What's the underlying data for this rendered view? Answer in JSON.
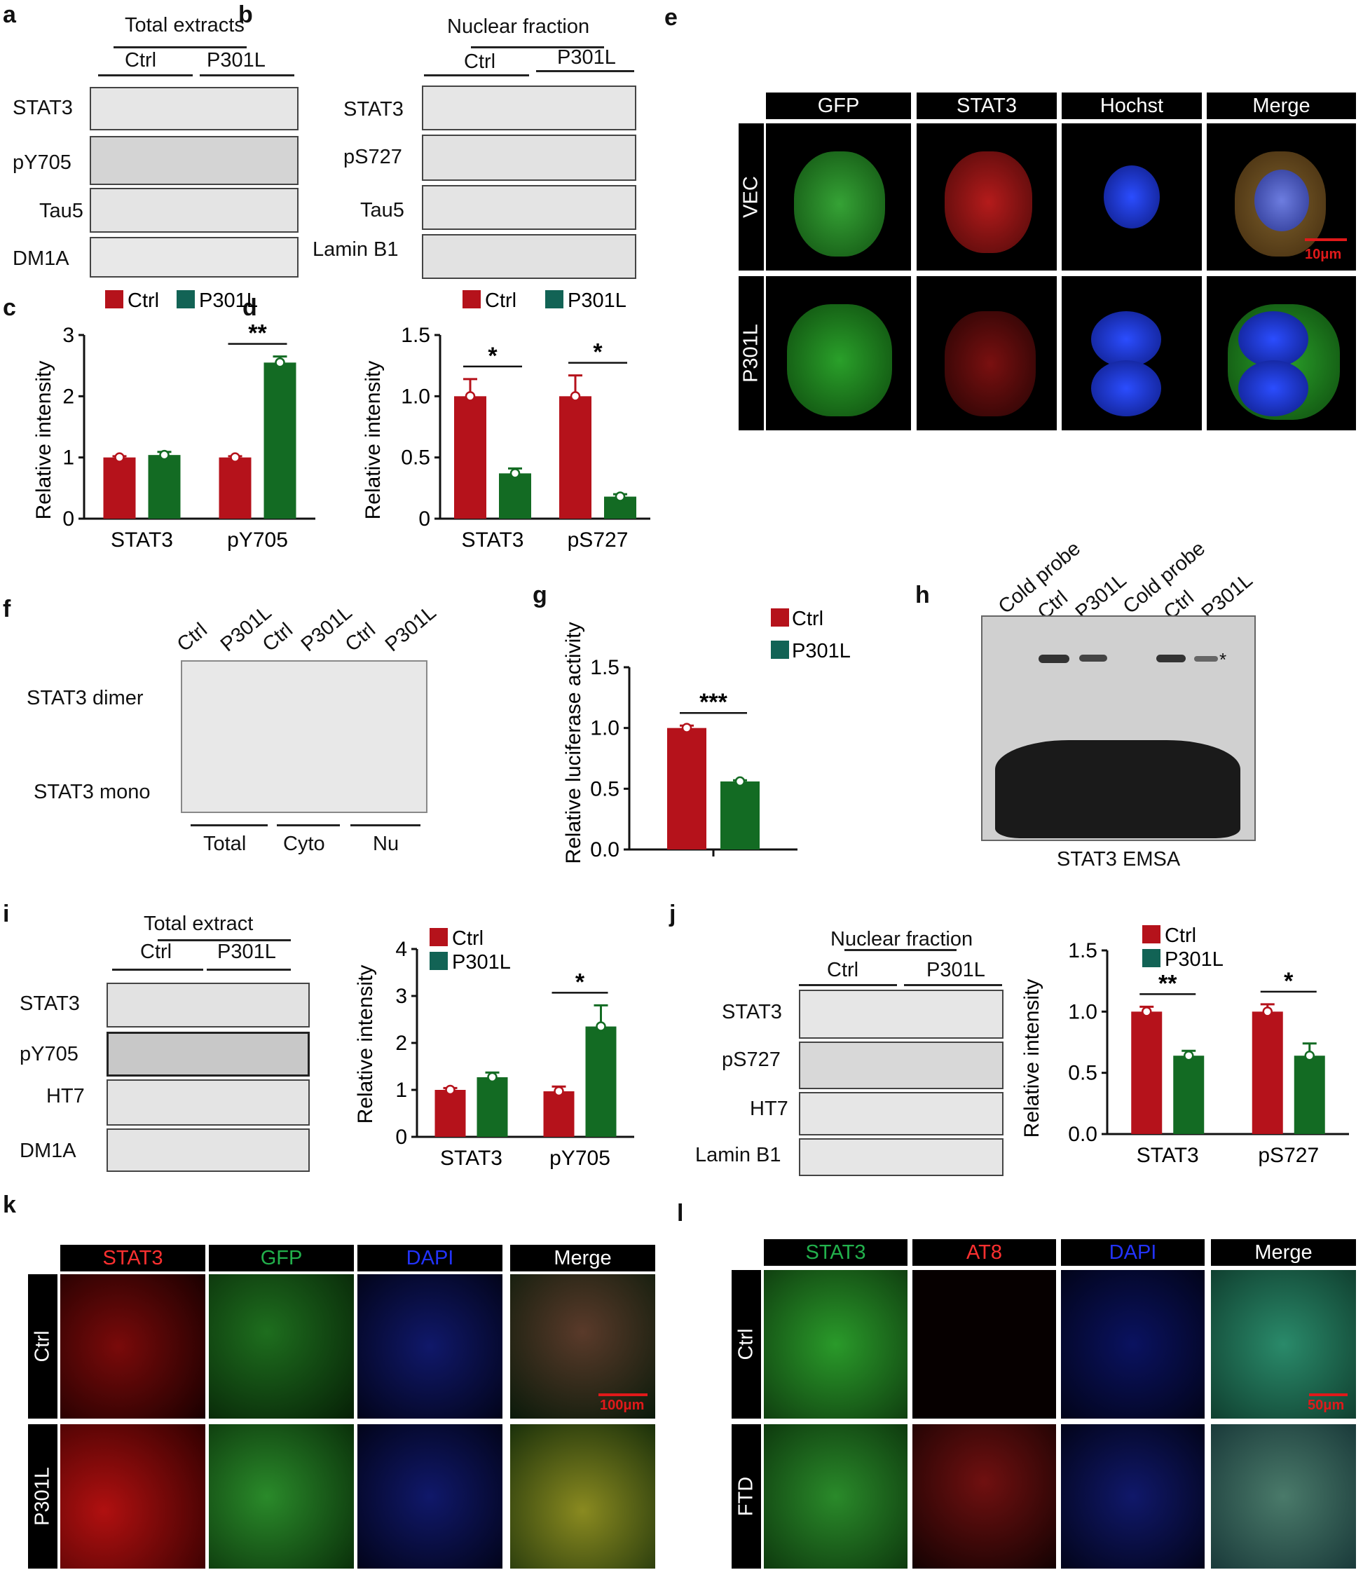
{
  "labels": {
    "a": "a",
    "b": "b",
    "c": "c",
    "d": "d",
    "e": "e",
    "f": "f",
    "g": "g",
    "h": "h",
    "i": "i",
    "j": "j",
    "k": "k",
    "l": "l"
  },
  "common": {
    "ctrl": "Ctrl",
    "p301l": "P301L",
    "rel_int": "Relative intensity",
    "star1": "*",
    "star2": "**",
    "star3": "***"
  },
  "panel_a": {
    "title": "Total extracts",
    "rows": [
      "STAT3",
      "pY705",
      "Tau5",
      "DM1A"
    ]
  },
  "panel_b": {
    "title": "Nuclear fraction",
    "rows": [
      "STAT3",
      "pS727",
      "Tau5",
      "Lamin B1"
    ]
  },
  "panel_e": {
    "cols": [
      "GFP",
      "STAT3",
      "Hochst",
      "Merge"
    ],
    "rows": [
      "VEC",
      "P301L"
    ],
    "scale": "10μm"
  },
  "panel_f": {
    "lanes": [
      "Ctrl",
      "P301L",
      "Ctrl",
      "P301L",
      "Ctrl",
      "P301L"
    ],
    "rows": [
      "STAT3 dimer",
      "STAT3 mono"
    ],
    "groups": [
      "Total",
      "Cyto",
      "Nu"
    ]
  },
  "panel_g": {
    "ylabel": "Relative luciferase activity"
  },
  "panel_h": {
    "lanes": [
      "Cold probe",
      "Ctrl",
      "P301L",
      "Cold probe",
      "Ctrl",
      "P301L"
    ],
    "caption": "STAT3 EMSA",
    "mark": "*"
  },
  "panel_i": {
    "title": "Total extract",
    "rows": [
      "STAT3",
      "pY705",
      "HT7",
      "DM1A"
    ]
  },
  "panel_j": {
    "title": "Nuclear fraction",
    "rows": [
      "STAT3",
      "pS727",
      "HT7",
      "Lamin B1"
    ]
  },
  "panel_k": {
    "cols": [
      "STAT3",
      "GFP",
      "DAPI",
      "Merge"
    ],
    "rows": [
      "Ctrl",
      "P301L"
    ],
    "scale": "100μm"
  },
  "panel_l": {
    "cols": [
      "STAT3",
      "AT8",
      "DAPI",
      "Merge"
    ],
    "rows": [
      "Ctrl",
      "FTD"
    ],
    "scale": "50μm"
  },
  "colors": {
    "ctrl": "#b5121b",
    "p301l": "#136b23",
    "p301l_legend": "#126355",
    "green": "#22b14c",
    "red": "#ff2a2a",
    "blue": "#2233ff"
  },
  "chart_data": [
    {
      "panel": "c",
      "type": "bar",
      "categories": [
        "STAT3",
        "pY705"
      ],
      "series": [
        {
          "name": "Ctrl",
          "values": [
            1.0,
            1.0
          ],
          "errors": [
            0.02,
            0.02
          ]
        },
        {
          "name": "P301L",
          "values": [
            1.04,
            2.55
          ],
          "errors": [
            0.05,
            0.1
          ]
        }
      ],
      "ylabel": "Relative intensity",
      "ylim": [
        0,
        3
      ],
      "yticks": [
        "0",
        "1",
        "2",
        "3"
      ],
      "significance": [
        {
          "category": "pY705",
          "text": "**"
        }
      ]
    },
    {
      "panel": "d",
      "type": "bar",
      "categories": [
        "STAT3",
        "pS727"
      ],
      "series": [
        {
          "name": "Ctrl",
          "values": [
            1.0,
            1.0
          ],
          "errors": [
            0.14,
            0.17
          ]
        },
        {
          "name": "P301L",
          "values": [
            0.37,
            0.18
          ],
          "errors": [
            0.04,
            0.02
          ]
        }
      ],
      "ylabel": "Relative intensity",
      "ylim": [
        0,
        1.5
      ],
      "yticks": [
        "0",
        "0.5",
        "1.0",
        "1.5"
      ],
      "significance": [
        {
          "category": "STAT3",
          "text": "*"
        },
        {
          "category": "pS727",
          "text": "*"
        }
      ]
    },
    {
      "panel": "g",
      "type": "bar",
      "categories": [
        ""
      ],
      "series": [
        {
          "name": "Ctrl",
          "values": [
            1.0
          ],
          "errors": [
            0.02
          ]
        },
        {
          "name": "P301L",
          "values": [
            0.56
          ],
          "errors": [
            0.01
          ]
        }
      ],
      "ylabel": "Relative luciferase activity",
      "ylim": [
        0,
        1.5
      ],
      "yticks": [
        "0.0",
        "0.5",
        "1.0",
        "1.5"
      ],
      "significance": [
        {
          "category": "",
          "text": "***"
        }
      ]
    },
    {
      "panel": "i",
      "type": "bar",
      "categories": [
        "STAT3",
        "pY705"
      ],
      "series": [
        {
          "name": "Ctrl",
          "values": [
            1.0,
            0.97
          ],
          "errors": [
            0.04,
            0.1
          ]
        },
        {
          "name": "P301L",
          "values": [
            1.27,
            2.35
          ],
          "errors": [
            0.1,
            0.45
          ]
        }
      ],
      "ylabel": "Relative intensity",
      "ylim": [
        0,
        4
      ],
      "yticks": [
        "0",
        "1",
        "2",
        "3",
        "4"
      ],
      "significance": [
        {
          "category": "pY705",
          "text": "*"
        }
      ]
    },
    {
      "panel": "j",
      "type": "bar",
      "categories": [
        "STAT3",
        "pS727"
      ],
      "series": [
        {
          "name": "Ctrl",
          "values": [
            1.0,
            1.0
          ],
          "errors": [
            0.04,
            0.06
          ]
        },
        {
          "name": "P301L",
          "values": [
            0.64,
            0.64
          ],
          "errors": [
            0.04,
            0.1
          ]
        }
      ],
      "ylabel": "Relative intensity",
      "ylim": [
        0,
        1.5
      ],
      "yticks": [
        "0.0",
        "0.5",
        "1.0",
        "1.5"
      ],
      "significance": [
        {
          "category": "STAT3",
          "text": "**"
        },
        {
          "category": "pS727",
          "text": "*"
        }
      ]
    }
  ]
}
